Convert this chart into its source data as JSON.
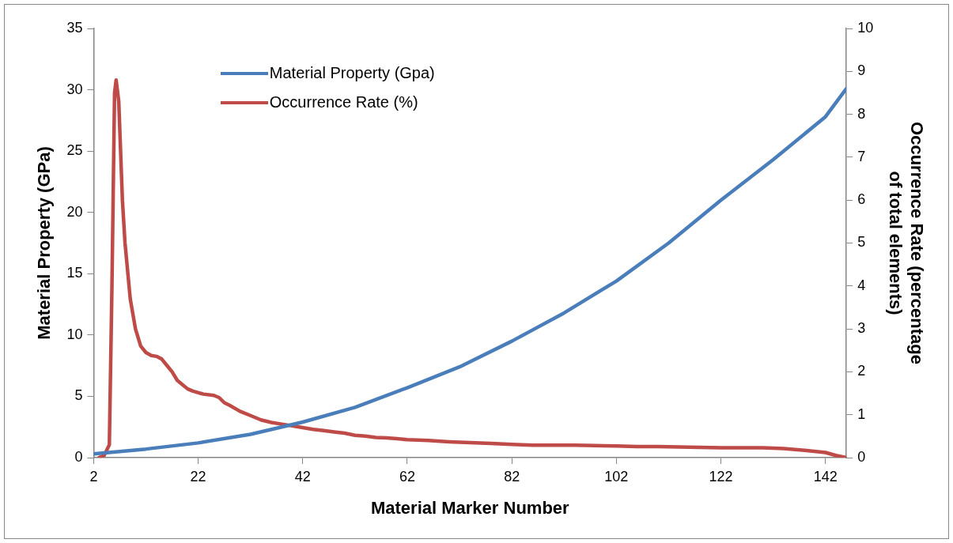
{
  "chart_data": {
    "type": "line",
    "xlabel": "Material Marker Number",
    "ylabel": "Material Property (GPa)",
    "y2label": "Occurrence Rate (percentage of total elements)",
    "xlim": [
      2,
      146
    ],
    "xticks": [
      2,
      22,
      42,
      62,
      82,
      102,
      122,
      142
    ],
    "ylim": [
      0,
      35
    ],
    "yticks": [
      0,
      5,
      10,
      15,
      20,
      25,
      30,
      35
    ],
    "y2lim": [
      0,
      10
    ],
    "y2ticks": [
      0,
      1,
      2,
      3,
      4,
      5,
      6,
      7,
      8,
      9,
      10
    ],
    "grid": false,
    "legend": "top",
    "marker": "none",
    "line_style": "solid",
    "series": [
      {
        "name": "Material Property (Gpa)",
        "color": "#4a7ebb",
        "x": [
          2,
          12,
          22,
          32,
          42,
          52,
          62,
          72,
          82,
          92,
          102,
          112,
          122,
          132,
          142,
          146
        ],
        "values": [
          0.3,
          0.7,
          1.2,
          1.9,
          2.9,
          4.1,
          5.7,
          7.4,
          9.5,
          11.8,
          14.4,
          17.5,
          21,
          24.3,
          27.8,
          30.1
        ]
      },
      {
        "name": "Occurrence Rate (%)",
        "color": "#be4b48",
        "axis": "y2",
        "x": [
          3,
          4,
          5,
          5.5,
          6,
          6.3,
          6.8,
          7.5,
          8,
          9,
          10,
          11,
          12,
          13,
          14,
          15,
          16,
          17,
          18,
          19,
          20,
          21,
          23,
          25,
          26,
          27,
          28,
          30,
          32,
          34,
          36,
          38,
          40,
          42,
          44,
          46,
          48,
          50,
          52,
          54,
          56,
          58,
          60,
          62,
          66,
          70,
          74,
          78,
          82,
          86,
          90,
          94,
          98,
          102,
          106,
          110,
          114,
          118,
          122,
          126,
          130,
          134,
          138,
          142,
          144,
          146
        ],
        "values": [
          0,
          0.05,
          0.3,
          4,
          8.5,
          8.8,
          8.3,
          6,
          5,
          3.7,
          3,
          2.6,
          2.45,
          2.38,
          2.36,
          2.3,
          2.15,
          2,
          1.8,
          1.7,
          1.6,
          1.55,
          1.48,
          1.45,
          1.4,
          1.28,
          1.22,
          1.08,
          0.98,
          0.88,
          0.82,
          0.78,
          0.74,
          0.7,
          0.66,
          0.63,
          0.6,
          0.57,
          0.52,
          0.5,
          0.47,
          0.46,
          0.44,
          0.42,
          0.4,
          0.37,
          0.35,
          0.33,
          0.31,
          0.29,
          0.29,
          0.29,
          0.28,
          0.27,
          0.26,
          0.26,
          0.25,
          0.24,
          0.23,
          0.23,
          0.23,
          0.21,
          0.17,
          0.12,
          0.05,
          0
        ]
      }
    ]
  }
}
